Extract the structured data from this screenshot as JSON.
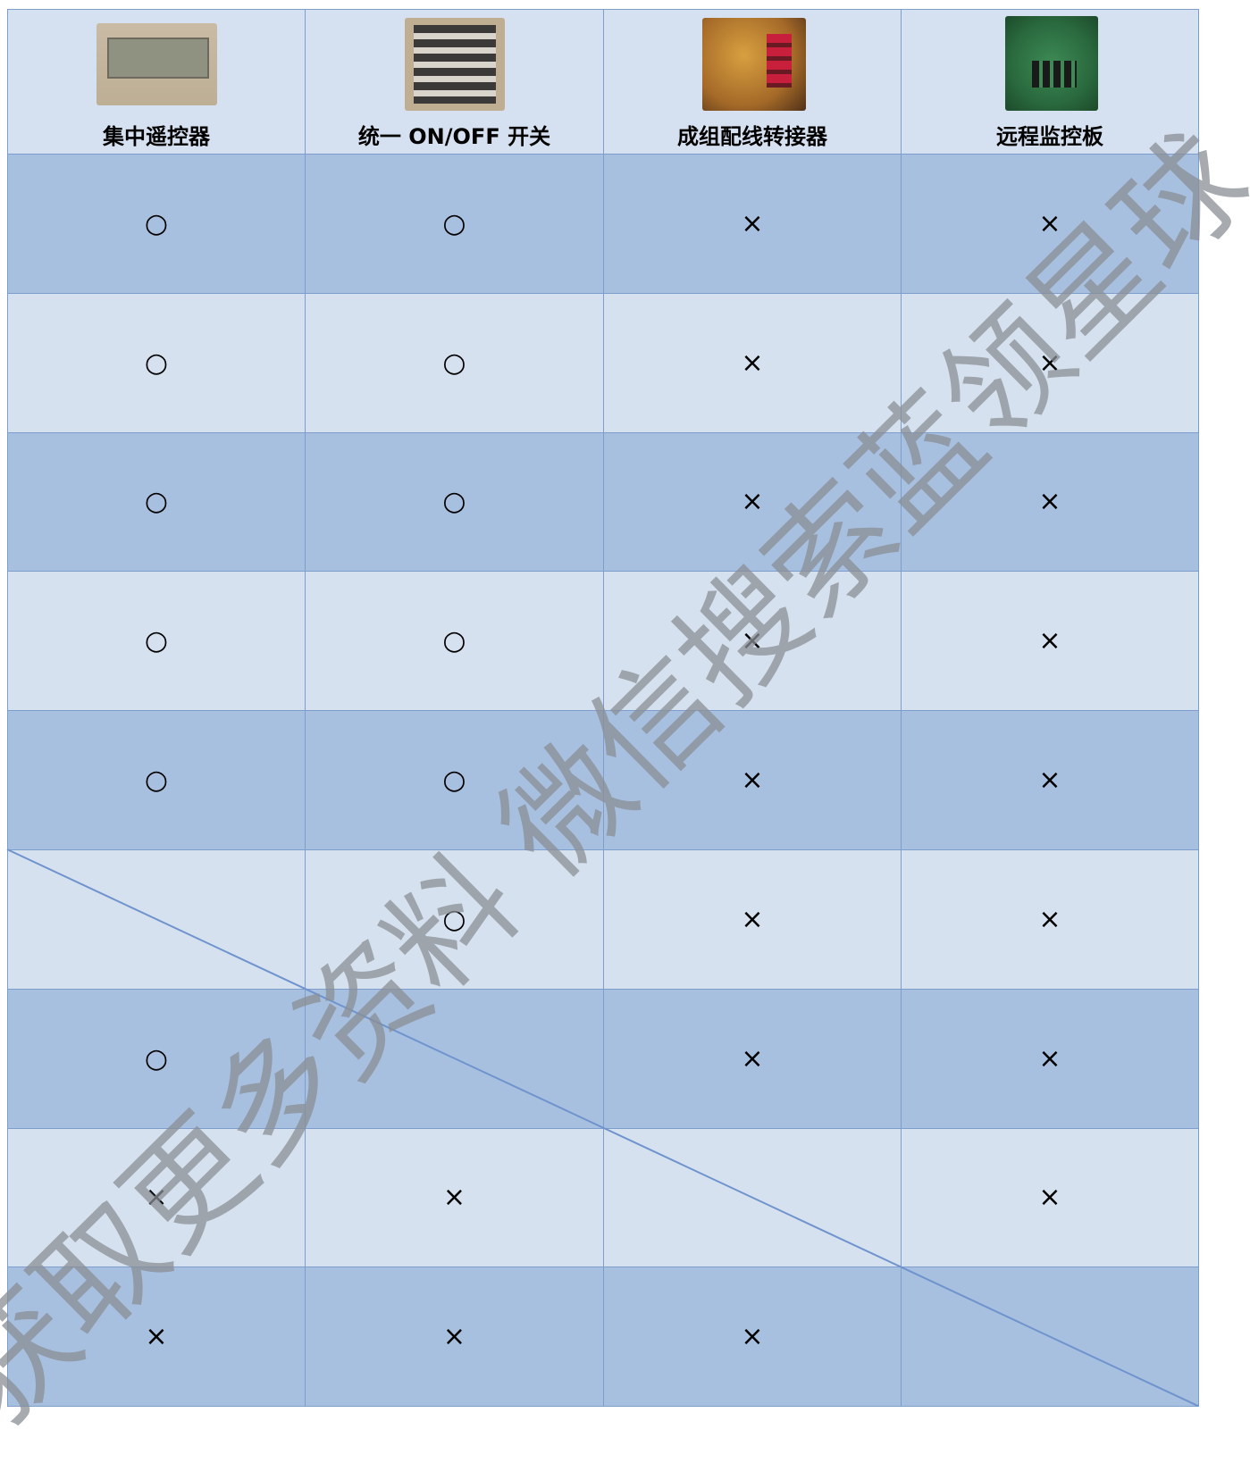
{
  "header": [
    "集中遥控器",
    "统一 ON/OFF 开关",
    "成组配线转接器",
    "远程监控板"
  ],
  "rows": [
    [
      "○",
      "○",
      "×",
      "×"
    ],
    [
      "○",
      "○",
      "×",
      "×"
    ],
    [
      "○",
      "○",
      "×",
      "×"
    ],
    [
      "○",
      "○",
      "×",
      "×"
    ],
    [
      "○",
      "○",
      "×",
      "×"
    ],
    [
      null,
      "○",
      "×",
      "×"
    ],
    [
      "○",
      null,
      "×",
      "×"
    ],
    [
      "×",
      "×",
      null,
      "×"
    ],
    [
      "×",
      "×",
      "×",
      null
    ]
  ],
  "watermark": "获取更多资料 微信搜索蓝领星球"
}
